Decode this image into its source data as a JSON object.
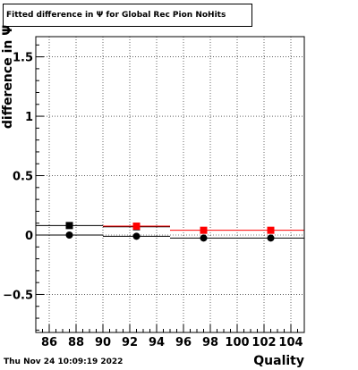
{
  "chart_data": {
    "type": "scatter",
    "title": "Fitted difference in  Ψ  for Global Rec Pion NoHits",
    "xlabel": "Quality",
    "ylabel": "difference in Ψ",
    "timestamp": "Thu Nov 24 10:09:19 2022",
    "xlim": [
      85,
      105
    ],
    "ylim": [
      -0.82,
      1.67
    ],
    "xticks": [
      86,
      88,
      90,
      92,
      94,
      96,
      98,
      100,
      102,
      104
    ],
    "xtick_labels": [
      "86",
      "88",
      "90",
      "92",
      "94",
      "96",
      "98",
      "100",
      "102",
      "104"
    ],
    "yticks": [
      -0.5,
      0,
      0.5,
      1,
      1.5
    ],
    "ytick_labels": [
      "−0.5",
      "0",
      "0.5",
      "1",
      "1.5"
    ],
    "grid": true,
    "series": [
      {
        "color": "#000000",
        "marker": "square",
        "points": [
          {
            "x": 87.5,
            "y": 0.08,
            "xlo": 85,
            "xhi": 90
          },
          {
            "x": 92.5,
            "y": 0.07,
            "xlo": 90,
            "xhi": 95
          }
        ]
      },
      {
        "color": "#ff0000",
        "marker": "square",
        "points": [
          {
            "x": 92.5,
            "y": 0.075,
            "xlo": 90,
            "xhi": 95
          },
          {
            "x": 97.5,
            "y": 0.04,
            "xlo": 95,
            "xhi": 100
          },
          {
            "x": 102.5,
            "y": 0.04,
            "xlo": 100,
            "xhi": 105
          }
        ]
      },
      {
        "color": "#000000",
        "marker": "circle",
        "points": [
          {
            "x": 87.5,
            "y": 0.0,
            "xlo": 85,
            "xhi": 90
          },
          {
            "x": 92.5,
            "y": -0.01,
            "xlo": 90,
            "xhi": 95
          },
          {
            "x": 97.5,
            "y": -0.025,
            "xlo": 95,
            "xhi": 100
          },
          {
            "x": 102.5,
            "y": -0.025,
            "xlo": 100,
            "xhi": 105
          }
        ]
      }
    ]
  }
}
